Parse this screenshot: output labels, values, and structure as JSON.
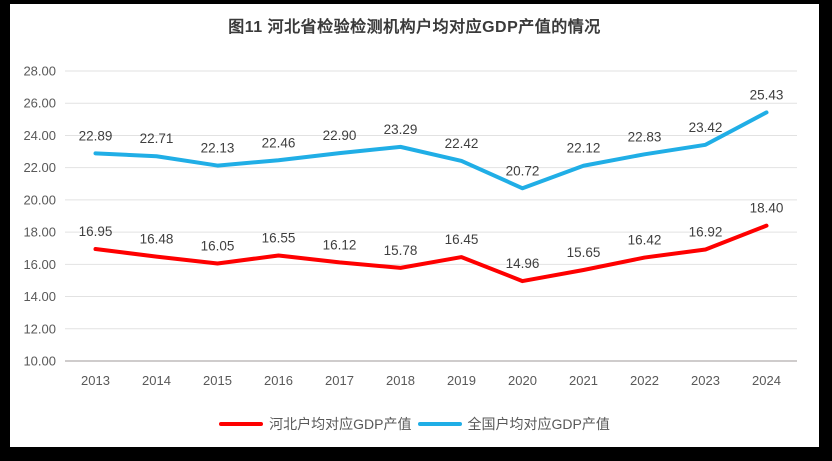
{
  "chart_data": {
    "type": "line",
    "title": "图11 河北省检验检测机构户均对应GDP产值的情况",
    "categories": [
      "2013",
      "2014",
      "2015",
      "2016",
      "2017",
      "2018",
      "2019",
      "2020",
      "2021",
      "2022",
      "2023",
      "2024"
    ],
    "series": [
      {
        "name": "河北户均对应GDP产值",
        "color": "#fe0000",
        "values": [
          16.95,
          16.48,
          16.05,
          16.55,
          16.12,
          15.78,
          16.45,
          14.96,
          15.65,
          16.42,
          16.92,
          18.4
        ]
      },
      {
        "name": "全国户均对应GDP产值",
        "color": "#20aee6",
        "values": [
          22.89,
          22.71,
          22.13,
          22.46,
          22.9,
          23.29,
          22.42,
          20.72,
          22.12,
          22.83,
          23.42,
          25.43
        ]
      }
    ],
    "ylim": [
      10,
      28
    ],
    "yticks": [
      "10.00",
      "12.00",
      "14.00",
      "16.00",
      "18.00",
      "20.00",
      "22.00",
      "24.00",
      "26.00",
      "28.00"
    ],
    "data_labels": true,
    "grid": true,
    "legend_position": "bottom",
    "xlabel": "",
    "ylabel": "",
    "colors": {
      "grid": "#e2e2e2",
      "axis": "#cfcccc",
      "tick_text": "#595959",
      "label_text": "#3f3f3f",
      "title_text": "#3a3a3a",
      "frame": "#000000",
      "background": "#ffffff"
    }
  }
}
